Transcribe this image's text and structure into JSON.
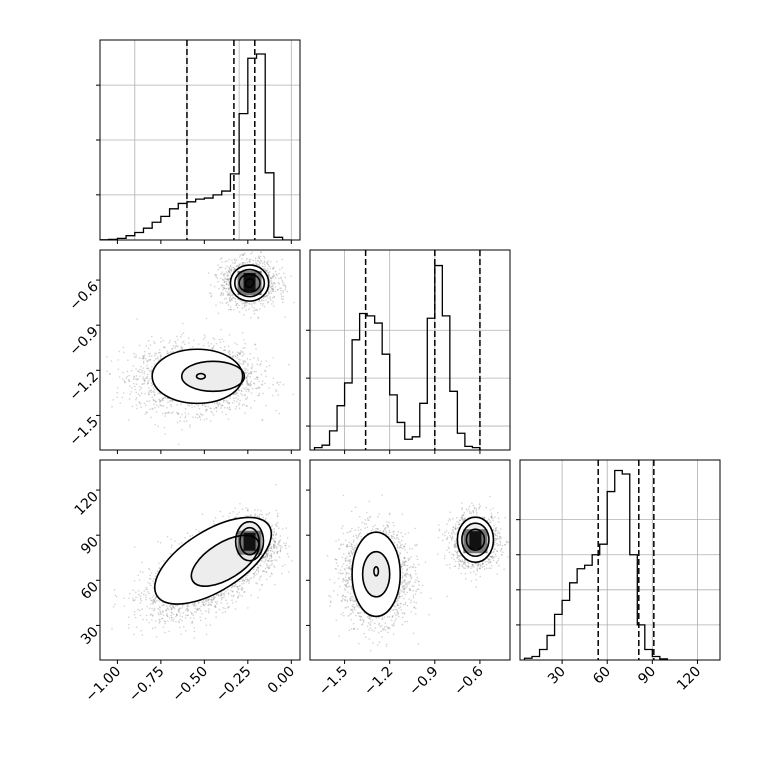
{
  "chart_data": [
    {
      "id": "p0",
      "type": "histogram",
      "param_index": 0,
      "bins": {
        "start": -1.1,
        "width": 0.05
      },
      "counts": [
        0.5,
        1,
        3,
        8,
        14,
        22,
        33,
        44,
        58,
        68,
        71,
        76,
        78,
        84,
        91,
        123,
        235,
        338,
        346,
        125,
        5,
        0
      ],
      "quantiles": [
        -0.6,
        -0.33,
        -0.21
      ],
      "ylim": [
        0,
        372
      ],
      "y_grid": [
        84,
        186,
        288
      ],
      "x_ticks": [
        -1.0,
        -0.75,
        -0.5,
        -0.25,
        0.0
      ],
      "x_grid": [
        -0.9,
        -0.6,
        -0.3,
        0.0
      ],
      "show_x_ticklabels": false
    },
    {
      "id": "p1",
      "type": "histogram",
      "param_index": 1,
      "bins": {
        "start": -1.7,
        "width": 0.05
      },
      "counts": [
        2,
        4,
        16,
        37,
        56,
        92,
        114,
        112,
        106,
        80,
        46,
        23,
        9,
        11,
        39,
        110,
        154,
        112,
        49,
        14,
        3,
        2
      ],
      "quantiles": [
        -1.36,
        -0.9,
        -0.6
      ],
      "ylim": [
        0,
        167
      ],
      "y_grid": [
        20,
        60,
        100
      ],
      "x_ticks": [
        -1.5,
        -1.2,
        -0.9,
        -0.6
      ],
      "x_grid": [
        -1.5,
        -1.2,
        -0.9,
        -0.6
      ],
      "show_x_ticklabels": false
    },
    {
      "id": "p2",
      "type": "histogram",
      "param_index": 2,
      "bins": {
        "start": 5,
        "width": 5
      },
      "counts": [
        0.5,
        1,
        3,
        7,
        13,
        17,
        22,
        26,
        27,
        30,
        33,
        48,
        54,
        53,
        30,
        10,
        3,
        1,
        0.3
      ],
      "quantiles": [
        54,
        81,
        91
      ],
      "ylim": [
        0,
        57
      ],
      "y_grid": [
        10,
        20,
        30,
        40
      ],
      "x_ticks": [
        30,
        60,
        90,
        120
      ],
      "x_grid": [
        30,
        60,
        90,
        120
      ],
      "x_ticklabels": [
        "30",
        "60",
        "90",
        "120"
      ],
      "show_x_ticklabels": true
    },
    {
      "id": "p01",
      "type": "scatter_density",
      "x_param": 0,
      "y_param": 1,
      "xlim": [
        -1.1,
        0.05
      ],
      "ylim": [
        -1.73,
        -0.4
      ],
      "clusters": [
        {
          "cx": -0.55,
          "cy": -1.25,
          "sx": 0.17,
          "sy": 0.11,
          "n": 2300,
          "rot": 0
        },
        {
          "cx": -0.24,
          "cy": -0.62,
          "sx": 0.08,
          "sy": 0.075,
          "n": 1300,
          "rot": 0
        }
      ],
      "contours": [
        {
          "cx": -0.54,
          "cy": -1.24,
          "rx": 0.26,
          "ry": 0.18,
          "rot": 0
        },
        {
          "cx": -0.45,
          "cy": -1.24,
          "rx": 0.18,
          "ry": 0.1,
          "rot": 0
        },
        {
          "cx": -0.52,
          "cy": -1.24,
          "rx": 0.025,
          "ry": 0.018,
          "rot": 0
        },
        {
          "cx": -0.24,
          "cy": -0.62,
          "rx": 0.11,
          "ry": 0.12,
          "rot": 0
        },
        {
          "cx": -0.24,
          "cy": -0.62,
          "rx": 0.085,
          "ry": 0.09,
          "rot": 0
        },
        {
          "cx": -0.24,
          "cy": -0.62,
          "rx": 0.06,
          "ry": 0.06,
          "rot": 0
        },
        {
          "cx": -0.24,
          "cy": -0.62,
          "rx": 0.022,
          "ry": 0.03,
          "rot": 45
        }
      ],
      "y_ticks": [
        -1.5,
        -1.2,
        -0.9,
        -0.6
      ],
      "y_ticklabels": [
        "−1.5",
        "−1.2",
        "−0.9",
        "−0.6"
      ],
      "x_ticks": [
        -1.0,
        -0.75,
        -0.5,
        -0.25,
        0.0
      ],
      "show_x_ticklabels": false
    },
    {
      "id": "p02",
      "type": "scatter_density",
      "x_param": 0,
      "y_param": 2,
      "xlim": [
        -1.1,
        0.05
      ],
      "ylim": [
        7,
        140
      ],
      "clusters": [
        {
          "cx": -0.5,
          "cy": 63,
          "sx": 0.17,
          "sy": 14,
          "n": 2300,
          "rot": 0,
          "corr": 0.55
        },
        {
          "cx": -0.24,
          "cy": 85,
          "sx": 0.08,
          "sy": 9,
          "n": 1300,
          "rot": 0
        }
      ],
      "contours": [
        {
          "cx": -0.45,
          "cy": 73,
          "rx": 0.38,
          "ry": 20,
          "rot": -32
        },
        {
          "cx": -0.38,
          "cy": 73,
          "rx": 0.22,
          "ry": 12,
          "rot": -32
        },
        {
          "cx": -0.24,
          "cy": 86,
          "rx": 0.08,
          "ry": 13,
          "rot": 0
        },
        {
          "cx": -0.24,
          "cy": 86,
          "rx": 0.055,
          "ry": 9,
          "rot": 0
        }
      ],
      "y_ticks": [
        30,
        60,
        90,
        120
      ],
      "y_ticklabels": [
        "30",
        "60",
        "90",
        "120"
      ],
      "x_ticks": [
        -1.0,
        -0.75,
        -0.5,
        -0.25,
        0.0
      ],
      "x_ticklabels": [
        "−1.00",
        "−0.75",
        "−0.50",
        "−0.25",
        "0.00"
      ],
      "show_x_ticklabels": true
    },
    {
      "id": "p12",
      "type": "scatter_density",
      "x_param": 1,
      "y_param": 2,
      "xlim": [
        -1.73,
        -0.4
      ],
      "ylim": [
        7,
        140
      ],
      "clusters": [
        {
          "cx": -1.29,
          "cy": 63,
          "sx": 0.11,
          "sy": 15,
          "n": 2300,
          "rot": 0
        },
        {
          "cx": -0.63,
          "cy": 86,
          "sx": 0.08,
          "sy": 9,
          "n": 1300,
          "rot": 0
        }
      ],
      "contours": [
        {
          "cx": -1.29,
          "cy": 64,
          "rx": 0.16,
          "ry": 28,
          "rot": 0
        },
        {
          "cx": -1.29,
          "cy": 64,
          "rx": 0.09,
          "ry": 15,
          "rot": 0
        },
        {
          "cx": -1.29,
          "cy": 66,
          "rx": 0.015,
          "ry": 3,
          "rot": 0
        },
        {
          "cx": -0.63,
          "cy": 87,
          "rx": 0.12,
          "ry": 15,
          "rot": 0
        },
        {
          "cx": -0.63,
          "cy": 87,
          "rx": 0.09,
          "ry": 11,
          "rot": 0
        },
        {
          "cx": -0.63,
          "cy": 87,
          "rx": 0.06,
          "ry": 7,
          "rot": 0
        }
      ],
      "x_ticks": [
        -1.5,
        -1.2,
        -0.9,
        -0.6
      ],
      "x_ticklabels": [
        "−1.5",
        "−1.2",
        "−0.9",
        "−0.6"
      ],
      "y_ticks": [
        30,
        60,
        90,
        120
      ],
      "show_x_ticklabels": true
    }
  ],
  "colors": {
    "line": "#000000",
    "grid": "#b0b0b0",
    "points": "#808080"
  }
}
